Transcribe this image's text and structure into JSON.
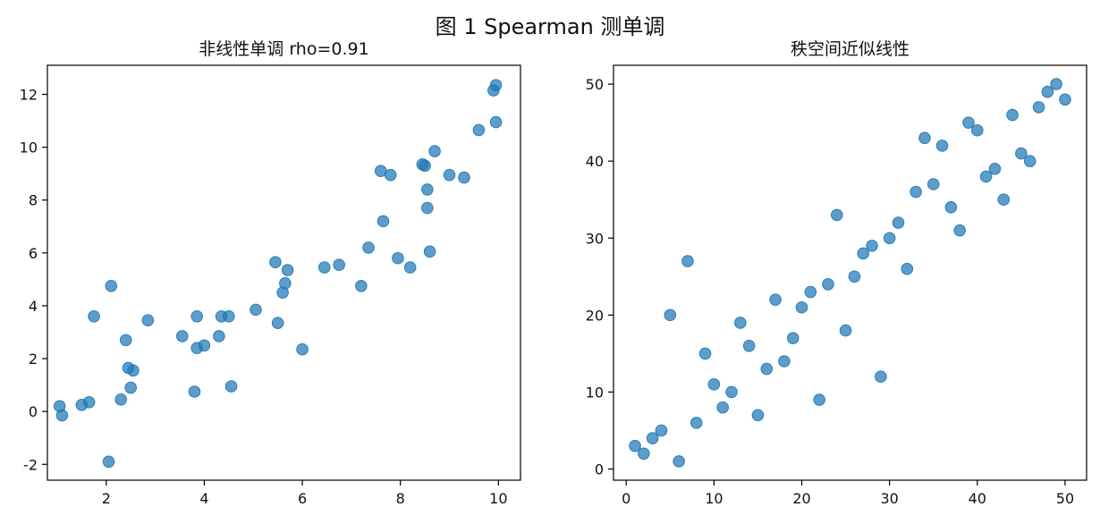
{
  "figure": {
    "title": "图 1   Spearman 测单调"
  },
  "chart_data": [
    {
      "type": "scatter",
      "title": "非线性单调 rho=0.91",
      "xlabel": "",
      "ylabel": "",
      "xlim": [
        0.8,
        10.45
      ],
      "ylim": [
        -2.6,
        13.1
      ],
      "xticks": [
        2,
        4,
        6,
        8,
        10
      ],
      "yticks": [
        -2,
        0,
        2,
        4,
        6,
        8,
        10,
        12
      ],
      "color": "#1f77b4",
      "grid": false,
      "x": [
        1.05,
        1.1,
        1.5,
        1.65,
        1.75,
        2.05,
        2.1,
        2.3,
        2.4,
        2.45,
        2.5,
        2.55,
        2.85,
        3.55,
        3.8,
        3.85,
        3.85,
        4.0,
        4.3,
        4.35,
        4.5,
        4.55,
        5.05,
        5.45,
        5.5,
        5.6,
        5.65,
        5.7,
        6.0,
        6.45,
        6.75,
        7.2,
        7.35,
        7.95,
        8.2,
        7.6,
        7.8,
        7.65,
        8.45,
        8.5,
        8.7,
        8.55,
        8.55,
        8.6,
        9.0,
        9.3,
        9.6,
        9.9,
        9.95,
        9.95
      ],
      "y": [
        0.2,
        -0.15,
        0.25,
        0.35,
        3.6,
        -1.9,
        4.75,
        0.45,
        2.7,
        1.65,
        0.9,
        1.55,
        3.45,
        2.85,
        0.75,
        2.4,
        3.6,
        2.5,
        2.85,
        3.6,
        3.6,
        0.95,
        3.85,
        5.65,
        3.35,
        4.5,
        4.85,
        5.35,
        2.35,
        5.45,
        5.55,
        4.75,
        6.2,
        5.8,
        5.45,
        9.1,
        8.95,
        7.2,
        9.35,
        9.3,
        9.85,
        8.4,
        7.7,
        6.05,
        8.95,
        8.85,
        10.65,
        12.15,
        12.35,
        10.95
      ]
    },
    {
      "type": "scatter",
      "title": "秩空间近似线性",
      "xlabel": "",
      "ylabel": "",
      "xlim": [
        -1.45,
        52.45
      ],
      "ylim": [
        -1.45,
        52.45
      ],
      "xticks": [
        0,
        10,
        20,
        30,
        40,
        50
      ],
      "yticks": [
        0,
        10,
        20,
        30,
        40,
        50
      ],
      "color": "#1f77b4",
      "grid": false,
      "x": [
        1,
        2,
        3,
        4,
        5,
        6,
        7,
        8,
        9,
        10,
        11,
        12,
        13,
        14,
        15,
        16,
        17,
        18,
        19,
        20,
        21,
        22,
        23,
        24,
        25,
        26,
        27,
        28,
        29,
        30,
        31,
        32,
        33,
        34,
        35,
        36,
        37,
        38,
        39,
        40,
        41,
        42,
        43,
        44,
        45,
        46,
        47,
        48,
        49,
        50
      ],
      "y": [
        3,
        2,
        4,
        5,
        20,
        1,
        27,
        6,
        15,
        11,
        8,
        10,
        19,
        16,
        7,
        13,
        22,
        14,
        17,
        21,
        23,
        9,
        24,
        33,
        18,
        25,
        28,
        29,
        12,
        30,
        32,
        26,
        36,
        43,
        37,
        42,
        34,
        31,
        45,
        44,
        38,
        39,
        35,
        46,
        41,
        40,
        47,
        49,
        50,
        48
      ]
    }
  ]
}
